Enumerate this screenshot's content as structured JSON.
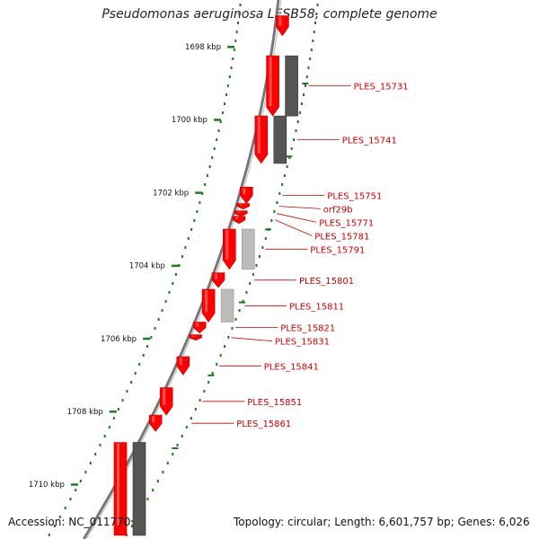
{
  "title": "Pseudomonas aeruginosa LESB58, complete genome",
  "footer": {
    "accession": "Accession: NC_011770",
    "summary": "Topology: circular; Length: 6,601,757 bp; Genes: 6,026"
  },
  "colors": {
    "gene": "#ff0000",
    "gene_dark": "#c00000",
    "cds_dark": "#555555",
    "cds_light": "#bbbbbb",
    "axis_tick": "#1e7a1e",
    "label": "#cc0000",
    "backbone": "#777777"
  },
  "scale": {
    "unit": "kbp",
    "ticks": [
      {
        "label": "1698 kbp",
        "kbp": 1698
      },
      {
        "label": "1700 kbp",
        "kbp": 1700
      },
      {
        "label": "1702 kbp",
        "kbp": 1702
      },
      {
        "label": "1704 kbp",
        "kbp": 1704
      },
      {
        "label": "1706 kbp",
        "kbp": 1706
      },
      {
        "label": "1708 kbp",
        "kbp": 1708
      },
      {
        "label": "1710 kbp",
        "kbp": 1710
      }
    ]
  },
  "genes": [
    {
      "label": "",
      "start_kbp": 1697.15,
      "end_kbp": 1697.7,
      "strand": "-"
    },
    {
      "label": "PLES_15731",
      "start_kbp": 1698.25,
      "end_kbp": 1699.9,
      "strand": "-",
      "cds": "dark"
    },
    {
      "label": "PLES_15741",
      "start_kbp": 1699.9,
      "end_kbp": 1701.2,
      "strand": "-",
      "cds": "dark"
    },
    {
      "label": "PLES_15751",
      "start_kbp": 1701.85,
      "end_kbp": 1702.3,
      "strand": "-"
    },
    {
      "label": "orf29b",
      "start_kbp": 1702.3,
      "end_kbp": 1702.45,
      "strand": "-"
    },
    {
      "label": "PLES_15771",
      "start_kbp": 1702.5,
      "end_kbp": 1702.65,
      "strand": "-"
    },
    {
      "label": "PLES_15781",
      "start_kbp": 1702.65,
      "end_kbp": 1702.85,
      "strand": "-"
    },
    {
      "label": "PLES_15791",
      "start_kbp": 1703.0,
      "end_kbp": 1704.1,
      "strand": "-",
      "cds": "light"
    },
    {
      "label": "PLES_15801",
      "start_kbp": 1704.2,
      "end_kbp": 1704.6,
      "strand": "-"
    },
    {
      "label": "PLES_15811",
      "start_kbp": 1704.65,
      "end_kbp": 1705.55,
      "strand": "-",
      "cds": "light"
    },
    {
      "label": "PLES_15821",
      "start_kbp": 1705.55,
      "end_kbp": 1705.85,
      "strand": "-"
    },
    {
      "label": "PLES_15831",
      "start_kbp": 1705.9,
      "end_kbp": 1706.05,
      "strand": "-"
    },
    {
      "label": "PLES_15841",
      "start_kbp": 1706.5,
      "end_kbp": 1707.0,
      "strand": "-"
    },
    {
      "label": "PLES_15851",
      "start_kbp": 1707.35,
      "end_kbp": 1708.1,
      "strand": "-"
    },
    {
      "label": "PLES_15861",
      "start_kbp": 1708.1,
      "end_kbp": 1708.55,
      "strand": "-"
    },
    {
      "label": "",
      "start_kbp": 1708.85,
      "end_kbp": 1711.4,
      "strand": "+",
      "cds": "dark"
    }
  ]
}
